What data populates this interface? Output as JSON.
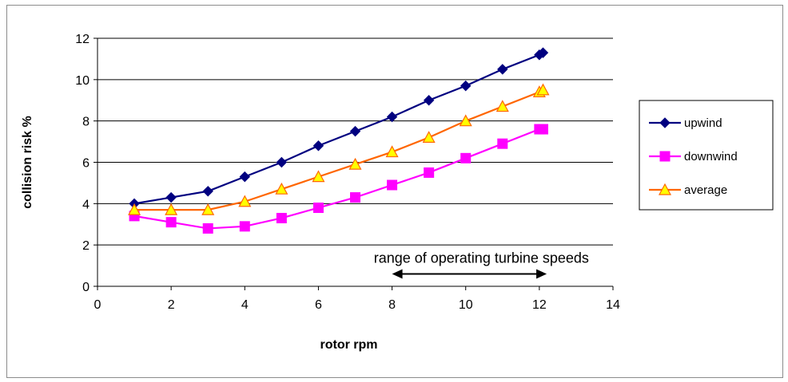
{
  "chart_data": {
    "type": "line",
    "title": "",
    "xlabel": "rotor rpm",
    "ylabel": "collision risk %",
    "xlim": [
      0,
      14
    ],
    "ylim": [
      0,
      12
    ],
    "x_ticks": [
      "0",
      "2",
      "4",
      "6",
      "8",
      "10",
      "12",
      "14"
    ],
    "y_ticks": [
      "0",
      "2",
      "4",
      "6",
      "8",
      "10",
      "12"
    ],
    "grid": "horizontal",
    "legend_position": "right",
    "series": [
      {
        "name": "upwind",
        "color": "#000080",
        "marker": "diamond",
        "x": [
          1,
          2,
          3,
          4,
          5,
          6,
          7,
          8,
          9,
          10,
          11,
          12,
          12.1
        ],
        "y": [
          4.0,
          4.3,
          4.6,
          5.3,
          6.0,
          6.8,
          7.5,
          8.2,
          9.0,
          9.7,
          10.5,
          11.2,
          11.3
        ]
      },
      {
        "name": "downwind",
        "color": "#ff00ff",
        "marker": "square",
        "x": [
          1,
          2,
          3,
          4,
          5,
          6,
          7,
          8,
          9,
          10,
          11,
          12,
          12.1
        ],
        "y": [
          3.4,
          3.1,
          2.8,
          2.9,
          3.3,
          3.8,
          4.3,
          4.9,
          5.5,
          6.2,
          6.9,
          7.6,
          7.6
        ]
      },
      {
        "name": "average",
        "color": "#ff6600",
        "marker_fill": "#ffff00",
        "marker": "triangle",
        "x": [
          1,
          2,
          3,
          4,
          5,
          6,
          7,
          8,
          9,
          10,
          11,
          12,
          12.1
        ],
        "y": [
          3.7,
          3.7,
          3.7,
          4.1,
          4.7,
          5.3,
          5.9,
          6.5,
          7.2,
          8.0,
          8.7,
          9.4,
          9.5
        ]
      }
    ],
    "annotation": {
      "text": "range of operating turbine speeds",
      "arrow_x": [
        8,
        12.2
      ],
      "arrow_y": 0.6
    }
  }
}
